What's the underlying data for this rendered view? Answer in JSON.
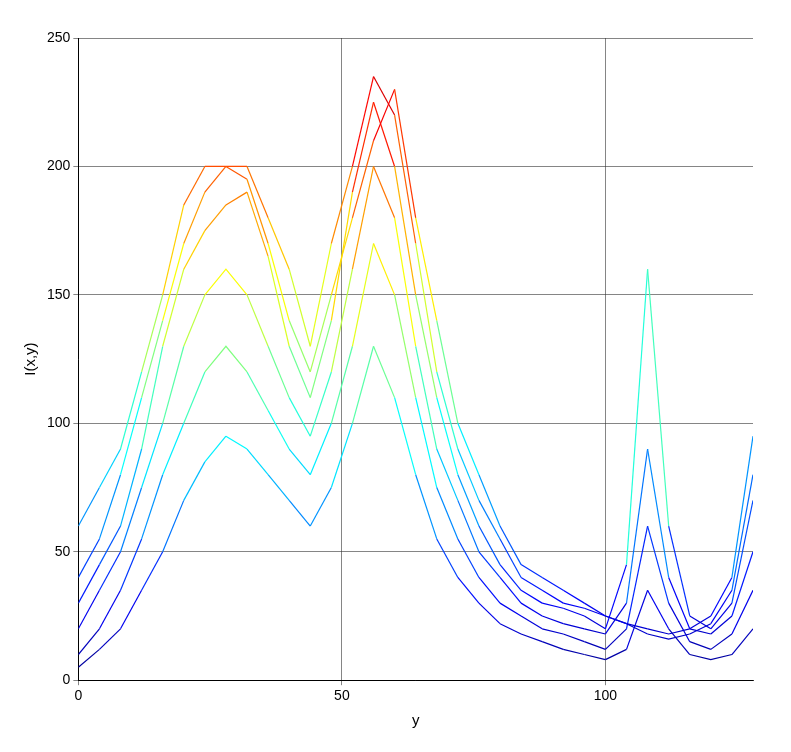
{
  "chart_data": {
    "type": "line",
    "y_label": "I(x,y)",
    "x_label": "y",
    "x": [
      0,
      4,
      8,
      12,
      16,
      20,
      24,
      28,
      32,
      36,
      40,
      44,
      48,
      52,
      56,
      60,
      64,
      68,
      72,
      76,
      80,
      84,
      88,
      92,
      96,
      100,
      104,
      108,
      112,
      116,
      120,
      124,
      128
    ],
    "series": [
      {
        "values": [
          60,
          75,
          90,
          120,
          150,
          185,
          200,
          200,
          195,
          170,
          140,
          120,
          150,
          180,
          210,
          230,
          180,
          140,
          100,
          80,
          60,
          45,
          40,
          35,
          30,
          25,
          22,
          20,
          18,
          20,
          25,
          40,
          95
        ]
      },
      {
        "values": [
          40,
          55,
          80,
          110,
          140,
          170,
          190,
          200,
          200,
          180,
          160,
          130,
          170,
          200,
          235,
          220,
          170,
          120,
          90,
          70,
          55,
          40,
          35,
          30,
          28,
          25,
          22,
          18,
          16,
          18,
          22,
          35,
          80
        ]
      },
      {
        "values": [
          30,
          45,
          60,
          90,
          130,
          160,
          175,
          185,
          190,
          165,
          130,
          110,
          140,
          190,
          225,
          200,
          150,
          110,
          80,
          60,
          45,
          35,
          30,
          28,
          25,
          20,
          45,
          160,
          60,
          25,
          20,
          30,
          70
        ]
      },
      {
        "values": [
          20,
          35,
          50,
          75,
          100,
          130,
          150,
          160,
          150,
          130,
          110,
          95,
          120,
          160,
          200,
          180,
          130,
          90,
          70,
          50,
          40,
          30,
          25,
          22,
          20,
          18,
          30,
          90,
          40,
          20,
          18,
          25,
          50
        ]
      },
      {
        "values": [
          10,
          20,
          35,
          55,
          80,
          100,
          120,
          130,
          120,
          105,
          90,
          80,
          100,
          130,
          170,
          150,
          110,
          75,
          55,
          40,
          30,
          25,
          20,
          18,
          15,
          12,
          20,
          60,
          30,
          15,
          12,
          18,
          35
        ]
      },
      {
        "values": [
          5,
          12,
          20,
          35,
          50,
          70,
          85,
          95,
          90,
          80,
          70,
          60,
          75,
          100,
          130,
          110,
          80,
          55,
          40,
          30,
          22,
          18,
          15,
          12,
          10,
          8,
          12,
          35,
          20,
          10,
          8,
          10,
          20
        ]
      }
    ],
    "xlim": [
      0,
      128
    ],
    "xticks": [
      0,
      50,
      100
    ],
    "ylim": [
      0,
      250
    ],
    "yticks": [
      0,
      50,
      100,
      150,
      200,
      250
    ],
    "grid": true
  }
}
